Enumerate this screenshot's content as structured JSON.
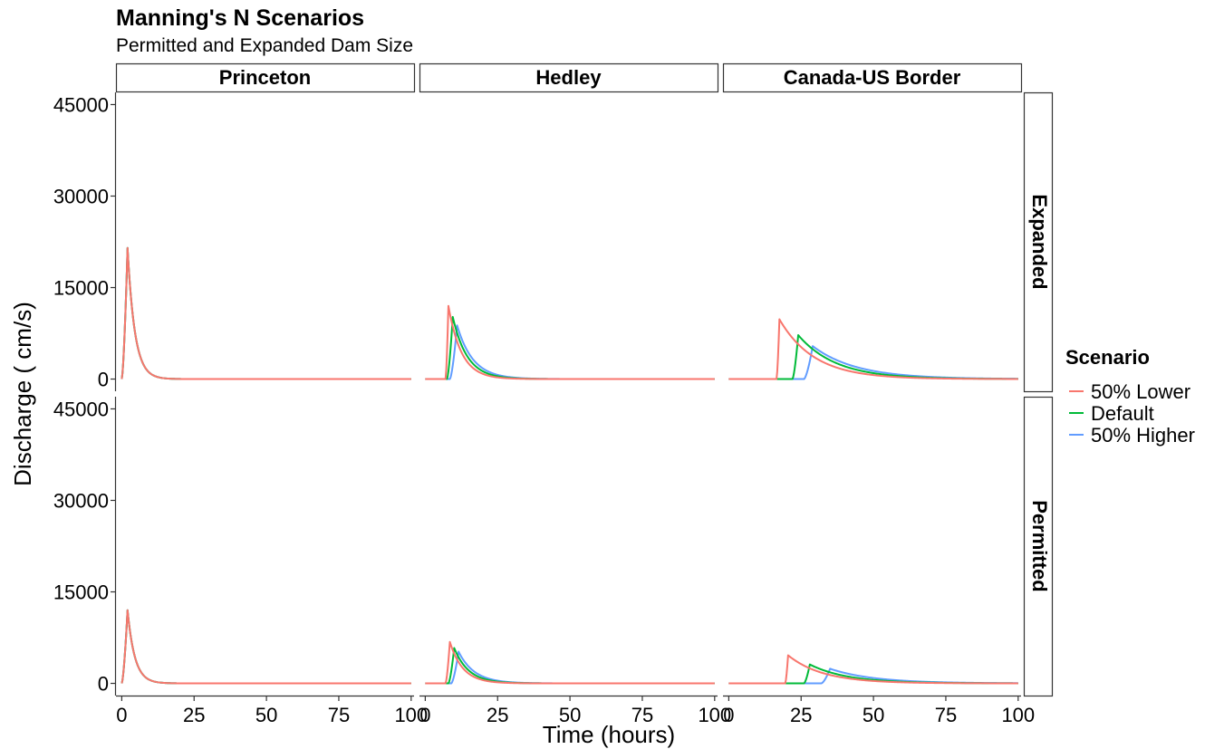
{
  "chart_data": {
    "type": "line",
    "title": "Manning's N Scenarios",
    "subtitle": "Permitted and Expanded Dam Size",
    "xlabel": "Time (hours)",
    "ylabel": "Discharge ( cm/s)",
    "xlim": [
      -2,
      101
    ],
    "ylim": [
      -2000,
      47000
    ],
    "x_ticks": [
      0,
      25,
      50,
      75,
      100
    ],
    "x_tick_labels": [
      "0",
      "25",
      "50",
      "75",
      "100"
    ],
    "y_ticks": [
      0,
      15000,
      30000,
      45000
    ],
    "y_tick_labels": [
      "0",
      "15000",
      "30000",
      "45000"
    ],
    "grid": false,
    "facet_columns": [
      "Princeton",
      "Hedley",
      "Canada-US Border"
    ],
    "facet_rows": [
      "Expanded",
      "Permitted"
    ],
    "legend": {
      "title": "Scenario",
      "position": "right",
      "entries": [
        "50% Lower",
        "Default",
        "50% Higher"
      ]
    },
    "series_colors": {
      "50% Lower": "#F8766D",
      "Default": "#00BA38",
      "50% Higher": "#619CFF"
    },
    "panels": [
      {
        "row": "Expanded",
        "column": "Princeton",
        "series": [
          {
            "name": "50% Lower",
            "onset": 0,
            "peak_time": 2,
            "peak": 21500,
            "decay_hours": 2.5
          },
          {
            "name": "Default",
            "onset": 0,
            "peak_time": 2,
            "peak": 21500,
            "decay_hours": 2.5
          },
          {
            "name": "50% Higher",
            "onset": 0,
            "peak_time": 2,
            "peak": 21500,
            "decay_hours": 2.5
          }
        ]
      },
      {
        "row": "Expanded",
        "column": "Hedley",
        "series": [
          {
            "name": "50% Lower",
            "onset": 7,
            "peak_time": 8,
            "peak": 12000,
            "decay_hours": 4.5
          },
          {
            "name": "Default",
            "onset": 7.5,
            "peak_time": 9.5,
            "peak": 10200,
            "decay_hours": 5
          },
          {
            "name": "50% Higher",
            "onset": 8.5,
            "peak_time": 11,
            "peak": 8800,
            "decay_hours": 5.5
          }
        ]
      },
      {
        "row": "Expanded",
        "column": "Canada-US Border",
        "series": [
          {
            "name": "50% Lower",
            "onset": 16.5,
            "peak_time": 17.5,
            "peak": 9800,
            "decay_hours": 12
          },
          {
            "name": "Default",
            "onset": 22,
            "peak_time": 24,
            "peak": 7200,
            "decay_hours": 13
          },
          {
            "name": "50% Higher",
            "onset": 26,
            "peak_time": 29,
            "peak": 5400,
            "decay_hours": 15
          }
        ]
      },
      {
        "row": "Permitted",
        "column": "Princeton",
        "series": [
          {
            "name": "50% Lower",
            "onset": 0,
            "peak_time": 2,
            "peak": 12000,
            "decay_hours": 2.5
          },
          {
            "name": "Default",
            "onset": 0,
            "peak_time": 2,
            "peak": 12000,
            "decay_hours": 2.5
          },
          {
            "name": "50% Higher",
            "onset": 0,
            "peak_time": 2,
            "peak": 12000,
            "decay_hours": 2.5
          }
        ]
      },
      {
        "row": "Permitted",
        "column": "Hedley",
        "series": [
          {
            "name": "50% Lower",
            "onset": 7,
            "peak_time": 8.5,
            "peak": 6800,
            "decay_hours": 4.5
          },
          {
            "name": "Default",
            "onset": 8,
            "peak_time": 10,
            "peak": 5800,
            "decay_hours": 5
          },
          {
            "name": "50% Higher",
            "onset": 9,
            "peak_time": 11.5,
            "peak": 5200,
            "decay_hours": 5.5
          }
        ]
      },
      {
        "row": "Permitted",
        "column": "Canada-US Border",
        "series": [
          {
            "name": "50% Lower",
            "onset": 19.5,
            "peak_time": 20.5,
            "peak": 4600,
            "decay_hours": 12
          },
          {
            "name": "Default",
            "onset": 26,
            "peak_time": 28,
            "peak": 3100,
            "decay_hours": 13
          },
          {
            "name": "50% Higher",
            "onset": 32,
            "peak_time": 35,
            "peak": 2400,
            "decay_hours": 15
          }
        ]
      }
    ]
  }
}
